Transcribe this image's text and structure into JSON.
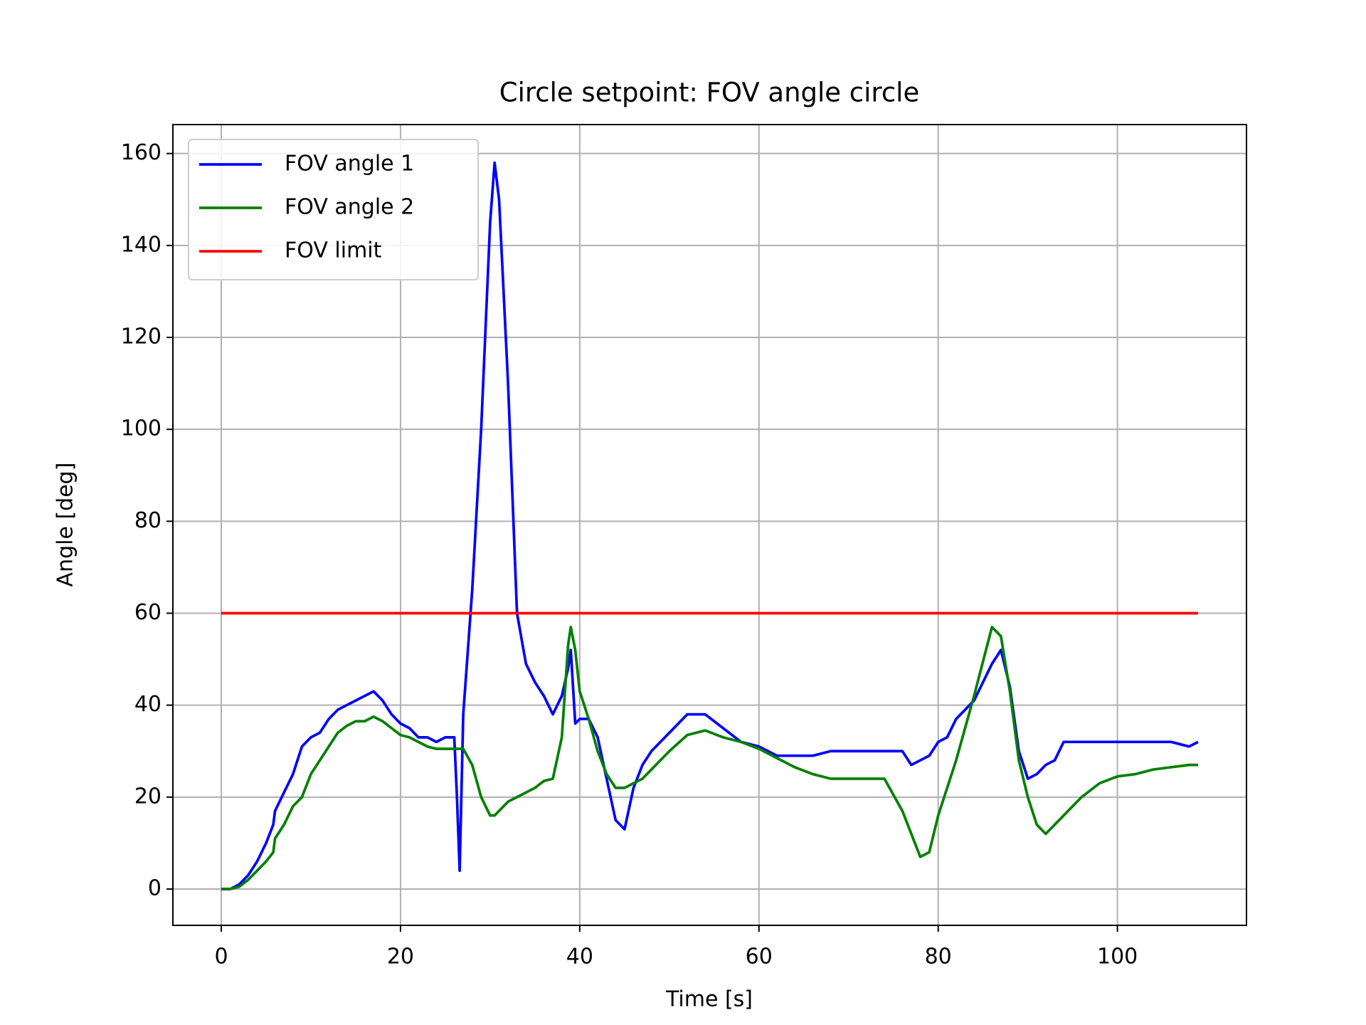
{
  "chart_data": {
    "type": "line",
    "title": "Circle setpoint: FOV angle circle",
    "x_label": "Time [s]",
    "y_label": "Angle [deg]",
    "x": [
      0,
      1,
      2,
      3,
      4,
      5,
      5.8,
      6,
      7,
      8,
      9,
      10,
      11,
      12,
      13,
      14,
      15,
      16,
      17,
      18,
      19,
      20,
      21,
      22,
      23,
      24,
      25,
      26,
      26.3,
      26.6,
      27,
      28,
      29,
      30,
      30.5,
      31,
      32,
      33,
      34,
      35,
      36,
      37,
      38,
      38.7,
      39,
      39.5,
      40,
      41,
      42,
      43,
      44,
      45,
      46,
      47,
      48,
      50,
      52,
      54,
      56,
      58,
      60,
      62,
      64,
      66,
      68,
      70,
      72,
      74,
      76,
      77,
      78,
      79,
      80,
      81,
      82,
      84,
      86,
      87,
      88,
      89,
      90,
      91,
      92,
      93,
      94,
      96,
      98,
      100,
      102,
      104,
      106,
      108,
      109
    ],
    "series": [
      {
        "name": "FOV angle 1",
        "color": "#0000ff",
        "values": [
          0,
          0,
          1,
          3,
          6,
          10,
          14,
          17,
          21,
          25,
          31,
          33,
          34,
          37,
          39,
          40,
          41,
          42,
          43,
          41,
          38,
          36,
          35,
          33,
          33,
          32,
          33,
          33,
          20,
          4,
          38,
          65,
          100,
          145,
          158,
          150,
          110,
          60,
          49,
          45,
          42,
          38,
          42,
          48,
          52,
          36,
          37,
          37,
          33,
          24,
          15,
          13,
          22,
          27,
          30,
          34,
          38,
          38,
          35,
          32,
          31,
          29,
          29,
          29,
          30,
          30,
          30,
          30,
          30,
          27,
          28,
          29,
          32,
          33,
          37,
          41,
          49,
          52,
          44,
          30,
          24,
          25,
          27,
          28,
          32,
          32,
          32,
          32,
          32,
          32,
          32,
          31,
          32
        ]
      },
      {
        "name": "FOV angle 2",
        "color": "#008000",
        "values": [
          0,
          0,
          0.5,
          2,
          4,
          6,
          8,
          11,
          14,
          18,
          20,
          25,
          28,
          31,
          34,
          35.5,
          36.5,
          36.5,
          37.5,
          36.5,
          35,
          33.5,
          33,
          32,
          31,
          30.5,
          30.5,
          30.5,
          30.5,
          30.5,
          30.5,
          27,
          20,
          16,
          16,
          17,
          19,
          20,
          21,
          22,
          23.5,
          24,
          33,
          53,
          57,
          52,
          43,
          37,
          30,
          25,
          22,
          22,
          23,
          24,
          26,
          30,
          33.5,
          34.5,
          33,
          32,
          30.5,
          28.5,
          26.5,
          25,
          24,
          24,
          24,
          24,
          17,
          12,
          7,
          8,
          16,
          22,
          28,
          42,
          57,
          55,
          43,
          28,
          20,
          14,
          12,
          14,
          16,
          20,
          23,
          24.5,
          25,
          26,
          26.5,
          27,
          27
        ]
      },
      {
        "name": "FOV limit",
        "color": "#ff0000",
        "x": [
          0,
          109
        ],
        "values": [
          60,
          60
        ]
      }
    ],
    "xlim": [
      -5.4,
      114.4
    ],
    "ylim": [
      -7.9,
      166.3
    ],
    "xticks": [
      0,
      20,
      40,
      60,
      80,
      100
    ],
    "yticks": [
      0,
      20,
      40,
      60,
      80,
      100,
      120,
      140,
      160
    ],
    "grid": true,
    "legend": "upper-left"
  }
}
